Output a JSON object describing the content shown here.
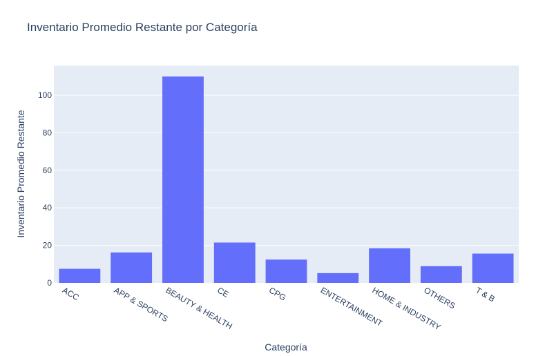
{
  "chart_data": {
    "type": "bar",
    "title": "Inventario Promedio Restante por Categoría",
    "xlabel": "Categoría",
    "ylabel": "Inventario Promedio Restante",
    "categories": [
      "ACC",
      "APP & SPORTS",
      "BEAUTY & HEALTH",
      "CE",
      "CPG",
      "ENTERTAINMENT",
      "HOME & INDUSTRY",
      "OTHERS",
      "T & B"
    ],
    "values": [
      7.5,
      16.2,
      110,
      21.5,
      12.4,
      5.2,
      18.4,
      8.9,
      15.6
    ],
    "ylim": [
      0,
      115.8
    ],
    "yticks": [
      0,
      20,
      40,
      60,
      80,
      100
    ],
    "grid": true,
    "colors": {
      "bar": "#636efa",
      "plot_bg": "#e5ecf6",
      "text": "#2a3f5f"
    }
  }
}
